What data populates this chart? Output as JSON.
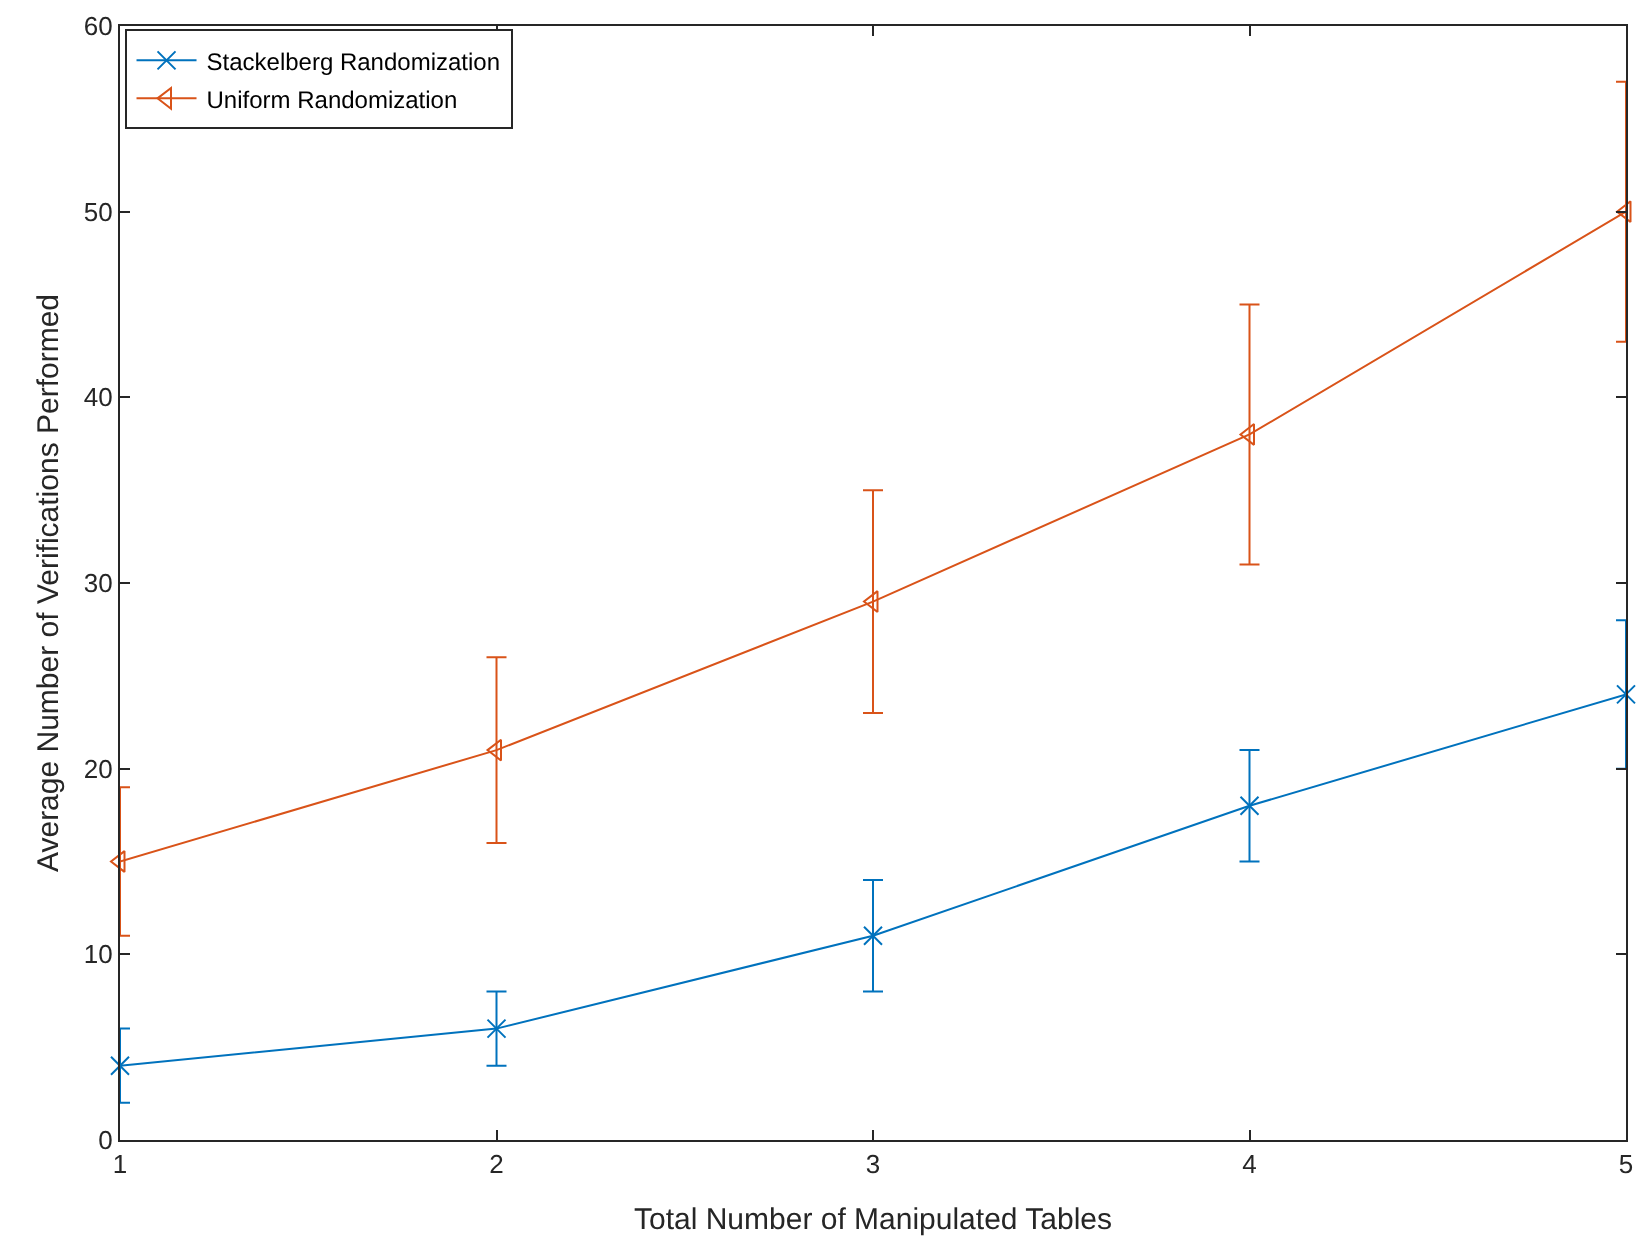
{
  "chart_data": {
    "type": "line",
    "xlabel": "Total Number of Manipulated Tables",
    "ylabel": "Average Number of Verifications Performed",
    "x": [
      1,
      2,
      3,
      4,
      5
    ],
    "series": [
      {
        "name": "Stackelberg Randomization",
        "color": "#0072bd",
        "marker": "cross",
        "values": [
          4,
          6,
          11,
          18,
          24
        ],
        "errors": [
          [
            2,
            6
          ],
          [
            4,
            8
          ],
          [
            8,
            14
          ],
          [
            15,
            21
          ],
          [
            20,
            28
          ]
        ]
      },
      {
        "name": "Uniform Randomization",
        "color": "#d95319",
        "marker": "triangle",
        "values": [
          15,
          21,
          29,
          38,
          50
        ],
        "errors": [
          [
            11,
            19
          ],
          [
            16,
            26
          ],
          [
            23,
            35
          ],
          [
            31,
            45
          ],
          [
            43,
            57
          ]
        ]
      }
    ],
    "xlim": [
      1,
      5
    ],
    "xticks": [
      1,
      2,
      3,
      4,
      5
    ],
    "ylim": [
      0,
      60
    ],
    "yticks": [
      0,
      10,
      20,
      30,
      40,
      50,
      60
    ],
    "legend": "top left",
    "line_style": "solid"
  }
}
